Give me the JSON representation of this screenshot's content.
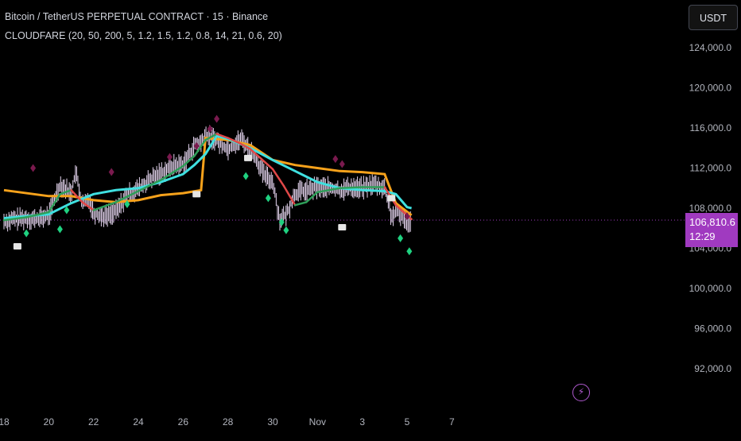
{
  "legend": {
    "symbol": "Bitcoin / TetherUS PERPETUAL CONTRACT · 15 · Binance",
    "indicator": "CLOUDFARE (20, 50, 200, 5, 1.2, 1.5, 1.2, 0.8, 14, 21, 0.6, 20)"
  },
  "currency_button": "USDT",
  "last_price": {
    "value": "106,810.6",
    "countdown": "12:29"
  },
  "flash_icon": "lightning-icon",
  "colors": {
    "background": "#000000",
    "orange_ma": "#f7a21b",
    "cyan_ma": "#3fe0e0",
    "fast_ma_up": "#2e9e58",
    "fast_ma_down": "#e04848",
    "candles": "#e6d6f0",
    "sell_marker": "#7a1a4e",
    "buy_marker": "#1fd180",
    "box_marker": "#e6e6e6",
    "price_tag": "#a03ac0",
    "axis_text": "#b2b5be"
  },
  "chart_data": {
    "type": "line",
    "title": "Bitcoin / TetherUS PERPETUAL CONTRACT · 15 · Binance",
    "xlabel": "",
    "ylabel": "",
    "x_ticks": [
      "18",
      "20",
      "22",
      "24",
      "26",
      "28",
      "30",
      "Nov",
      "3",
      "5",
      "7"
    ],
    "y_ticks": [
      "124,000.0",
      "120,000.0",
      "116,000.0",
      "112,000.0",
      "108,000.0",
      "104,000.0",
      "100,000.0",
      "96,000.0",
      "92,000.0"
    ],
    "ylim": [
      90000,
      126000
    ],
    "xlim": [
      18,
      48
    ],
    "last_price": 106810.6,
    "series": [
      {
        "role": "price",
        "x": [
          18,
          18.5,
          19,
          19.5,
          20,
          20.5,
          21,
          21.2,
          21.5,
          21.8,
          22,
          22.5,
          23,
          23.5,
          24,
          24.5,
          25,
          25.5,
          26,
          26.5,
          26.8,
          27,
          27.3,
          27.6,
          28,
          28.3,
          28.6,
          29,
          29.3,
          29.6,
          30,
          30.3,
          30.6,
          31,
          31.3,
          31.6,
          32,
          32.5,
          33,
          33.5,
          34,
          34.5,
          35,
          35.3,
          35.6,
          36,
          36.2
        ],
        "values": [
          106700,
          106900,
          107000,
          106900,
          107300,
          110400,
          109500,
          111600,
          108300,
          108900,
          107500,
          107200,
          107700,
          109300,
          109900,
          110800,
          111500,
          112200,
          112400,
          114200,
          114500,
          115300,
          115000,
          114600,
          113900,
          114400,
          114900,
          113800,
          112800,
          111300,
          110700,
          106900,
          107300,
          109500,
          109700,
          109800,
          110100,
          110000,
          109800,
          110100,
          110000,
          110400,
          110000,
          107200,
          107600,
          106700,
          106810
        ]
      },
      {
        "role": "orange-ma",
        "x": [
          18,
          20,
          21,
          22,
          23,
          24,
          25,
          26,
          26.8,
          27,
          28,
          29,
          30,
          31,
          32,
          33,
          34,
          35,
          35.5,
          36.2
        ],
        "values": [
          109800,
          109200,
          109200,
          108800,
          108600,
          108800,
          109300,
          109500,
          109800,
          115000,
          114800,
          114300,
          112800,
          112300,
          112000,
          111700,
          111600,
          111400,
          108500,
          107300
        ]
      },
      {
        "role": "cyan-ma",
        "x": [
          18,
          19,
          20,
          21,
          22,
          23,
          24,
          25,
          26,
          26.5,
          27,
          27.5,
          28,
          29,
          30,
          31,
          32,
          33,
          34,
          35,
          35.5,
          36,
          36.2
        ],
        "values": [
          107000,
          107200,
          107400,
          108500,
          109400,
          109800,
          110000,
          110600,
          111400,
          112300,
          113400,
          115200,
          114900,
          114000,
          112800,
          111700,
          110600,
          110000,
          109800,
          109700,
          109400,
          108100,
          108000
        ]
      },
      {
        "role": "fast-ma",
        "x": [
          18,
          19,
          20,
          20.5,
          21,
          21.5,
          22,
          23,
          24,
          25,
          26,
          26.5,
          27,
          27.5,
          28,
          28.5,
          29,
          29.5,
          30,
          30.5,
          31,
          31.5,
          32,
          33,
          34,
          35,
          35.5,
          36,
          36.2
        ],
        "values": [
          106800,
          107100,
          107600,
          109400,
          109800,
          108600,
          107800,
          108600,
          109700,
          110800,
          112200,
          113200,
          114800,
          115400,
          115000,
          114500,
          113900,
          112900,
          111900,
          110200,
          108300,
          108600,
          109600,
          110000,
          110100,
          110100,
          108300,
          107300,
          106900
        ]
      }
    ],
    "markers": {
      "sell_diamonds": [
        [
          19.3,
          112000
        ],
        [
          22.8,
          111600
        ],
        [
          25.4,
          113100
        ],
        [
          26.6,
          114200
        ],
        [
          27.2,
          115900
        ],
        [
          27.5,
          116900
        ],
        [
          32.8,
          112900
        ],
        [
          33.1,
          112400
        ],
        [
          36,
          107200
        ]
      ],
      "buy_diamonds": [
        [
          19.0,
          105500
        ],
        [
          20.5,
          105900
        ],
        [
          20.8,
          107800
        ],
        [
          23.5,
          108400
        ],
        [
          28.8,
          111200
        ],
        [
          29.8,
          109000
        ],
        [
          30.4,
          106600
        ],
        [
          30.6,
          105800
        ],
        [
          35.7,
          105000
        ],
        [
          36.1,
          103700
        ]
      ],
      "boxes": [
        [
          18.6,
          104200
        ],
        [
          26.6,
          109400
        ],
        [
          28.9,
          113000
        ],
        [
          33.1,
          106100
        ],
        [
          35.3,
          109000
        ]
      ]
    }
  }
}
